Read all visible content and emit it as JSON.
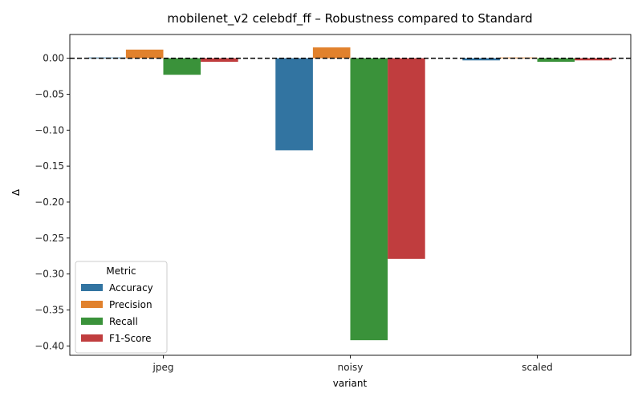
{
  "chart_data": {
    "type": "bar",
    "title": "mobilenet_v2 celebdf_ff – Robustness compared to Standard",
    "xlabel": "variant",
    "ylabel": "Δ",
    "categories": [
      "jpeg",
      "noisy",
      "scaled"
    ],
    "series": [
      {
        "name": "Accuracy",
        "color": "#3274a1",
        "values": [
          0.001,
          -0.128,
          -0.003
        ]
      },
      {
        "name": "Precision",
        "color": "#e1812c",
        "values": [
          0.012,
          0.015,
          0.001
        ]
      },
      {
        "name": "Recall",
        "color": "#3a923a",
        "values": [
          -0.023,
          -0.392,
          -0.005
        ]
      },
      {
        "name": "F1-Score",
        "color": "#c03d3e",
        "values": [
          -0.005,
          -0.279,
          -0.003
        ]
      }
    ],
    "ylim": [
      -0.413,
      0.033
    ],
    "yticks": [
      0.0,
      -0.05,
      -0.1,
      -0.15,
      -0.2,
      -0.25,
      -0.3,
      -0.35,
      -0.4
    ],
    "ytick_labels": [
      "0.00",
      "−0.05",
      "−0.10",
      "−0.15",
      "−0.20",
      "−0.25",
      "−0.30",
      "−0.35",
      "−0.40"
    ],
    "reference_line": 0,
    "grid": false,
    "legend": {
      "title": "Metric",
      "position": "lower-left"
    }
  }
}
